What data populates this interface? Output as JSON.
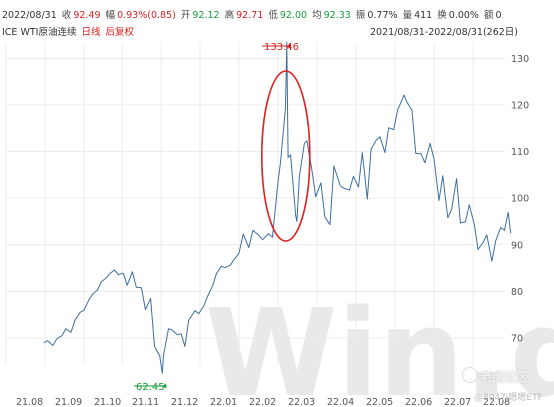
{
  "quote_bar": {
    "date": "2022/08/31",
    "close_label": "收",
    "close": "92.49",
    "change_label": "幅",
    "change": "0.93%(0.85)",
    "open_label": "开",
    "open": "92.12",
    "high_label": "高",
    "high": "92.71",
    "low_label": "低",
    "low": "92.00",
    "avg_label": "均",
    "avg": "92.33",
    "amp_label": "振",
    "amp": "0.77%",
    "vol_label": "量",
    "vol": "411",
    "turnover_label": "换",
    "turnover": "0.00%",
    "amount_label": "额",
    "amount": "0"
  },
  "subtitle": {
    "instrument": "ICE WTI原油连续",
    "freq": "日线",
    "adjust": "后复权",
    "range": "2021/08/31-2022/08/31(262日)"
  },
  "watermark": {
    "brand": "Win.d",
    "forum": "老虎社区",
    "user": "@8047i嗯嗯ETF"
  },
  "colors": {
    "line": "#3d6fa0",
    "high": "#d81e1e",
    "low": "#1a9d3a",
    "ellipse": "#e02020",
    "grid": "#ececec"
  },
  "chart_data": {
    "type": "line",
    "x_ticks": [
      "21.08",
      "21.09",
      "21.10",
      "21.11",
      "21.12",
      "22.01",
      "22.02",
      "22.03",
      "22.04",
      "22.05",
      "22.06",
      "22.07",
      "22.08"
    ],
    "y_ticks": [
      70,
      80,
      90,
      100,
      110,
      120,
      130
    ],
    "y_axis_side": "right",
    "ylim": [
      64,
      133.5
    ],
    "grid": true,
    "annotations": {
      "high": {
        "label": "133.46",
        "x": "2022-03-08",
        "value": 133.46
      },
      "low": {
        "label": "62.45",
        "x": "2021-12-02",
        "value": 62.45
      },
      "ellipse": "highlight around the March 2022 spike"
    },
    "series": [
      {
        "points": [
          [
            "2021-08-31",
            69.0
          ],
          [
            "2021-09-03",
            69.4
          ],
          [
            "2021-09-07",
            68.4
          ],
          [
            "2021-09-10",
            69.8
          ],
          [
            "2021-09-14",
            70.5
          ],
          [
            "2021-09-17",
            72.0
          ],
          [
            "2021-09-21",
            71.2
          ],
          [
            "2021-09-24",
            73.8
          ],
          [
            "2021-09-28",
            75.5
          ],
          [
            "2021-10-01",
            76.0
          ],
          [
            "2021-10-05",
            78.2
          ],
          [
            "2021-10-08",
            79.4
          ],
          [
            "2021-10-12",
            80.3
          ],
          [
            "2021-10-15",
            82.0
          ],
          [
            "2021-10-19",
            82.9
          ],
          [
            "2021-10-22",
            83.8
          ],
          [
            "2021-10-26",
            84.6
          ],
          [
            "2021-10-29",
            83.6
          ],
          [
            "2021-11-02",
            83.9
          ],
          [
            "2021-11-05",
            81.3
          ],
          [
            "2021-11-09",
            84.2
          ],
          [
            "2021-11-12",
            80.9
          ],
          [
            "2021-11-16",
            80.8
          ],
          [
            "2021-11-19",
            76.1
          ],
          [
            "2021-11-23",
            78.5
          ],
          [
            "2021-11-26",
            68.2
          ],
          [
            "2021-11-30",
            66.2
          ],
          [
            "2021-12-02",
            62.45
          ],
          [
            "2021-12-03",
            66.3
          ],
          [
            "2021-12-07",
            72.0
          ],
          [
            "2021-12-10",
            71.7
          ],
          [
            "2021-12-14",
            70.7
          ],
          [
            "2021-12-17",
            70.9
          ],
          [
            "2021-12-20",
            68.2
          ],
          [
            "2021-12-23",
            73.8
          ],
          [
            "2021-12-28",
            75.9
          ],
          [
            "2021-12-31",
            75.2
          ],
          [
            "2022-01-04",
            76.9
          ],
          [
            "2022-01-07",
            78.9
          ],
          [
            "2022-01-11",
            81.2
          ],
          [
            "2022-01-14",
            83.8
          ],
          [
            "2022-01-18",
            85.4
          ],
          [
            "2022-01-21",
            85.1
          ],
          [
            "2022-01-25",
            85.6
          ],
          [
            "2022-01-28",
            86.8
          ],
          [
            "2022-02-01",
            88.2
          ],
          [
            "2022-02-04",
            92.3
          ],
          [
            "2022-02-08",
            89.4
          ],
          [
            "2022-02-11",
            93.1
          ],
          [
            "2022-02-15",
            92.1
          ],
          [
            "2022-02-18",
            91.1
          ],
          [
            "2022-02-22",
            92.4
          ],
          [
            "2022-02-25",
            91.6
          ],
          [
            "2022-03-01",
            103.4
          ],
          [
            "2022-03-03",
            107.7
          ],
          [
            "2022-03-07",
            119.4
          ],
          [
            "2022-03-08",
            133.46
          ],
          [
            "2022-03-09",
            108.7
          ],
          [
            "2022-03-11",
            109.3
          ],
          [
            "2022-03-15",
            96.4
          ],
          [
            "2022-03-16",
            95.0
          ],
          [
            "2022-03-18",
            104.7
          ],
          [
            "2022-03-22",
            111.8
          ],
          [
            "2022-03-24",
            112.3
          ],
          [
            "2022-03-28",
            105.9
          ],
          [
            "2022-03-31",
            100.3
          ],
          [
            "2022-04-04",
            103.3
          ],
          [
            "2022-04-07",
            96.0
          ],
          [
            "2022-04-11",
            94.3
          ],
          [
            "2022-04-14",
            106.9
          ],
          [
            "2022-04-19",
            102.6
          ],
          [
            "2022-04-22",
            102.1
          ],
          [
            "2022-04-26",
            101.7
          ],
          [
            "2022-04-29",
            104.7
          ],
          [
            "2022-05-03",
            102.4
          ],
          [
            "2022-05-06",
            109.8
          ],
          [
            "2022-05-10",
            99.8
          ],
          [
            "2022-05-13",
            110.5
          ],
          [
            "2022-05-17",
            112.4
          ],
          [
            "2022-05-20",
            113.2
          ],
          [
            "2022-05-24",
            109.8
          ],
          [
            "2022-05-27",
            115.1
          ],
          [
            "2022-05-31",
            114.7
          ],
          [
            "2022-06-03",
            118.9
          ],
          [
            "2022-06-08",
            122.1
          ],
          [
            "2022-06-10",
            120.7
          ],
          [
            "2022-06-14",
            118.9
          ],
          [
            "2022-06-17",
            109.6
          ],
          [
            "2022-06-21",
            109.5
          ],
          [
            "2022-06-24",
            107.6
          ],
          [
            "2022-06-28",
            111.8
          ],
          [
            "2022-07-01",
            108.4
          ],
          [
            "2022-07-05",
            99.5
          ],
          [
            "2022-07-08",
            104.8
          ],
          [
            "2022-07-12",
            95.8
          ],
          [
            "2022-07-15",
            97.6
          ],
          [
            "2022-07-19",
            104.2
          ],
          [
            "2022-07-22",
            94.7
          ],
          [
            "2022-07-26",
            94.9
          ],
          [
            "2022-07-29",
            98.6
          ],
          [
            "2022-08-02",
            94.4
          ],
          [
            "2022-08-05",
            89.0
          ],
          [
            "2022-08-09",
            90.5
          ],
          [
            "2022-08-12",
            92.1
          ],
          [
            "2022-08-16",
            86.5
          ],
          [
            "2022-08-19",
            90.8
          ],
          [
            "2022-08-23",
            93.7
          ],
          [
            "2022-08-26",
            93.1
          ],
          [
            "2022-08-29",
            97.0
          ],
          [
            "2022-08-31",
            92.49
          ]
        ]
      }
    ]
  }
}
